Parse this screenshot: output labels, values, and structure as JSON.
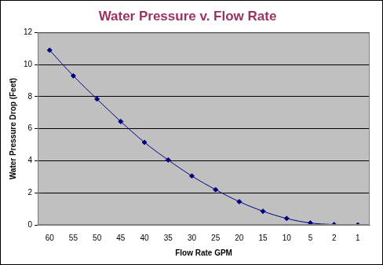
{
  "chart_data": {
    "type": "line",
    "title": "Water Pressure v. Flow Rate",
    "x_label": "Flow Rate GPM",
    "y_label": "Water Pressure Drop (Feet)",
    "categories": [
      "60",
      "55",
      "50",
      "45",
      "40",
      "35",
      "30",
      "25",
      "20",
      "15",
      "10",
      "5",
      "2",
      "1"
    ],
    "values": [
      10.9,
      9.3,
      7.85,
      6.45,
      5.15,
      4.05,
      3.05,
      2.2,
      1.45,
      0.85,
      0.4,
      0.12,
      0.02,
      0.0
    ],
    "color": "#000080",
    "marker": "diamond",
    "ylim": [
      0,
      12
    ],
    "yticks": [
      0,
      2,
      4,
      6,
      8,
      10,
      12
    ],
    "grid": true
  }
}
